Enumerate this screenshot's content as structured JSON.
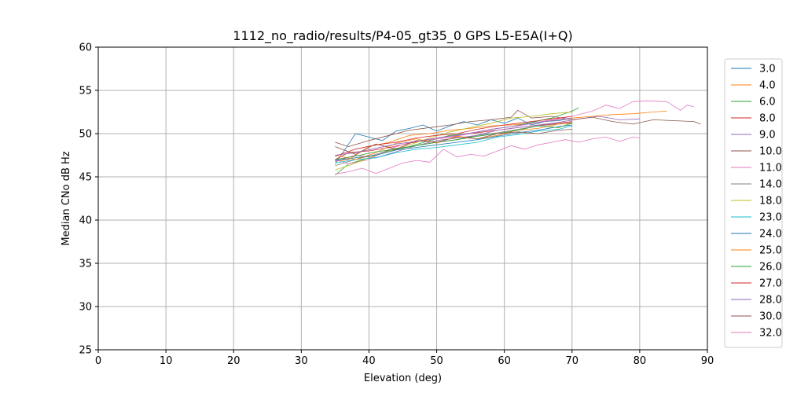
{
  "chart_data": {
    "type": "line",
    "title": "1112_no_radio/results/P4-05_gt35_0 GPS L5-E5A(I+Q)",
    "xlabel": "Elevation (deg)",
    "ylabel": "Median CNo dB Hz",
    "xlim": [
      0,
      90
    ],
    "ylim": [
      25,
      60
    ],
    "xticks": [
      "0",
      "10",
      "20",
      "30",
      "40",
      "50",
      "60",
      "70",
      "80",
      "90"
    ],
    "yticks": [
      "25",
      "30",
      "35",
      "40",
      "45",
      "50",
      "55",
      "60"
    ],
    "grid": true,
    "legend_position": "right",
    "series": [
      {
        "name": "3.0",
        "color": "#1f77b4",
        "x": [
          35,
          37,
          38,
          40,
          42,
          44,
          46,
          48,
          50,
          52,
          54,
          56,
          58,
          60,
          62,
          64,
          66,
          68,
          70
        ],
        "y": [
          46.5,
          48.8,
          50.0,
          49.6,
          49.2,
          50.3,
          50.6,
          51.0,
          50.3,
          50.9,
          51.4,
          51.0,
          51.6,
          51.2,
          51.8,
          51.0,
          51.4,
          51.5,
          51.8
        ]
      },
      {
        "name": "4.0",
        "color": "#ff7f0e",
        "x": [
          35,
          37,
          40,
          43,
          46,
          49,
          52,
          55,
          58,
          61,
          64,
          67,
          70,
          73,
          76,
          79,
          82,
          84
        ],
        "y": [
          46.8,
          47.0,
          48.5,
          49.0,
          49.8,
          50.0,
          50.4,
          50.6,
          50.9,
          51.0,
          51.2,
          51.5,
          51.8,
          52.0,
          52.2,
          52.3,
          52.5,
          52.6
        ]
      },
      {
        "name": "6.0",
        "color": "#2ca02c",
        "x": [
          35,
          37,
          40,
          43,
          46,
          49,
          52,
          55,
          58,
          61,
          64,
          67,
          70,
          71
        ],
        "y": [
          45.2,
          46.5,
          47.2,
          48.0,
          48.5,
          49.2,
          49.8,
          50.0,
          50.5,
          50.8,
          51.3,
          51.8,
          52.6,
          53.0
        ]
      },
      {
        "name": "8.0",
        "color": "#d62728",
        "x": [
          35,
          37,
          40,
          43,
          46,
          49,
          52,
          55,
          58,
          61,
          64,
          67,
          70
        ],
        "y": [
          47.0,
          47.8,
          48.0,
          48.4,
          48.9,
          49.3,
          49.6,
          50.0,
          50.3,
          50.6,
          50.9,
          51.1,
          51.4
        ]
      },
      {
        "name": "9.0",
        "color": "#9467bd",
        "x": [
          35,
          38,
          41,
          44,
          47,
          50,
          53,
          56,
          59,
          62,
          65,
          68,
          71,
          74,
          77,
          80
        ],
        "y": [
          46.8,
          47.5,
          47.2,
          47.9,
          48.6,
          49.2,
          49.5,
          49.8,
          50.4,
          50.7,
          51.0,
          51.3,
          51.7,
          52.0,
          51.6,
          51.7
        ]
      },
      {
        "name": "10.0",
        "color": "#8c564b",
        "x": [
          35,
          37,
          40,
          43,
          46,
          49,
          52,
          55,
          58,
          61,
          62,
          64,
          67,
          70,
          73,
          76,
          79,
          82,
          85,
          88,
          89
        ],
        "y": [
          49.0,
          48.5,
          49.2,
          49.8,
          50.4,
          50.7,
          51.0,
          51.4,
          51.6,
          51.9,
          52.7,
          51.8,
          52.0,
          51.6,
          51.9,
          51.4,
          51.1,
          51.6,
          51.5,
          51.4,
          51.1
        ]
      },
      {
        "name": "11.0",
        "color": "#e377c2",
        "x": [
          35,
          37,
          40,
          43,
          46,
          49,
          52,
          55,
          58,
          61,
          64,
          67,
          70,
          73,
          75,
          77,
          79,
          81,
          84,
          86,
          87,
          88
        ],
        "y": [
          47.0,
          46.5,
          47.0,
          48.2,
          49.0,
          49.3,
          49.6,
          50.0,
          50.5,
          50.8,
          51.2,
          51.6,
          52.0,
          52.6,
          53.3,
          52.9,
          53.7,
          53.8,
          53.7,
          52.7,
          53.3,
          53.1
        ]
      },
      {
        "name": "14.0",
        "color": "#7f7f7f",
        "x": [
          35,
          38,
          41,
          44,
          47,
          50,
          53,
          56,
          59,
          62,
          65,
          68,
          70
        ],
        "y": [
          46.3,
          47.0,
          47.6,
          48.3,
          48.6,
          49.0,
          49.3,
          49.8,
          50.1,
          50.5,
          50.9,
          51.1,
          51.3
        ]
      },
      {
        "name": "18.0",
        "color": "#bcbd22",
        "x": [
          35,
          37,
          40,
          43,
          46,
          49,
          52,
          55,
          58,
          61,
          64,
          67,
          70
        ],
        "y": [
          45.8,
          46.3,
          47.2,
          48.0,
          48.7,
          49.5,
          50.2,
          50.7,
          51.2,
          51.8,
          52.0,
          52.3,
          52.5
        ]
      },
      {
        "name": "23.0",
        "color": "#17becf",
        "x": [
          35,
          38,
          41,
          44,
          47,
          50,
          53,
          56,
          59,
          62,
          65,
          68,
          70
        ],
        "y": [
          46.6,
          47.0,
          47.2,
          47.8,
          48.2,
          48.4,
          48.7,
          49.0,
          49.6,
          49.9,
          50.3,
          50.5,
          50.9
        ]
      },
      {
        "name": "24.0",
        "color": "#1f77b4",
        "x": [
          35,
          38,
          41,
          44,
          47,
          50,
          53,
          56,
          59,
          62,
          65,
          68,
          70
        ],
        "y": [
          46.9,
          47.2,
          47.5,
          48.1,
          48.4,
          48.7,
          49.0,
          49.3,
          49.7,
          50.1,
          50.4,
          50.8,
          51.0
        ]
      },
      {
        "name": "25.0",
        "color": "#ff7f0e",
        "x": [
          35,
          38,
          41,
          44,
          47,
          50,
          53,
          56,
          59,
          62,
          65,
          68,
          70
        ],
        "y": [
          47.5,
          47.0,
          47.8,
          48.9,
          49.4,
          48.9,
          49.7,
          49.4,
          49.8,
          50.4,
          50.6,
          51.1,
          51.2
        ]
      },
      {
        "name": "26.0",
        "color": "#2ca02c",
        "x": [
          35,
          38,
          41,
          44,
          47,
          50,
          53,
          56,
          59,
          62,
          65,
          68,
          70
        ],
        "y": [
          47.0,
          47.4,
          47.9,
          48.2,
          48.6,
          49.0,
          49.3,
          49.7,
          50.0,
          50.4,
          50.9,
          50.7,
          51.2
        ]
      },
      {
        "name": "27.0",
        "color": "#d62728",
        "x": [
          35,
          38,
          41,
          44,
          47,
          50,
          53,
          56,
          59,
          62,
          65,
          68,
          70
        ],
        "y": [
          47.4,
          48.2,
          48.7,
          49.0,
          49.5,
          49.8,
          50.0,
          50.5,
          50.9,
          51.2,
          51.5,
          51.8,
          52.0
        ]
      },
      {
        "name": "28.0",
        "color": "#9467bd",
        "x": [
          35,
          38,
          41,
          44,
          47,
          50,
          53,
          56,
          59,
          62,
          65,
          68,
          70
        ],
        "y": [
          47.5,
          47.8,
          48.3,
          48.8,
          49.1,
          49.5,
          49.8,
          50.2,
          50.6,
          50.9,
          51.3,
          51.6,
          51.8
        ]
      },
      {
        "name": "30.0",
        "color": "#8c564b",
        "x": [
          35,
          38,
          41,
          44,
          47,
          50,
          53,
          56,
          59,
          62,
          65,
          68,
          70
        ],
        "y": [
          48.5,
          47.6,
          48.8,
          48.2,
          49.2,
          49.0,
          49.6,
          49.4,
          50.0,
          50.2,
          50.0,
          50.4,
          50.5
        ]
      },
      {
        "name": "32.0",
        "color": "#e377c2",
        "x": [
          35,
          37,
          39,
          41,
          43,
          45,
          47,
          49,
          51,
          53,
          55,
          57,
          59,
          61,
          63,
          65,
          67,
          69,
          71,
          73,
          75,
          77,
          79,
          80
        ],
        "y": [
          45.3,
          45.6,
          46.0,
          45.4,
          46.0,
          46.6,
          46.9,
          46.7,
          48.2,
          47.3,
          47.6,
          47.4,
          48.0,
          48.6,
          48.2,
          48.7,
          49.0,
          49.3,
          49.0,
          49.4,
          49.6,
          49.1,
          49.6,
          49.5
        ]
      }
    ]
  }
}
